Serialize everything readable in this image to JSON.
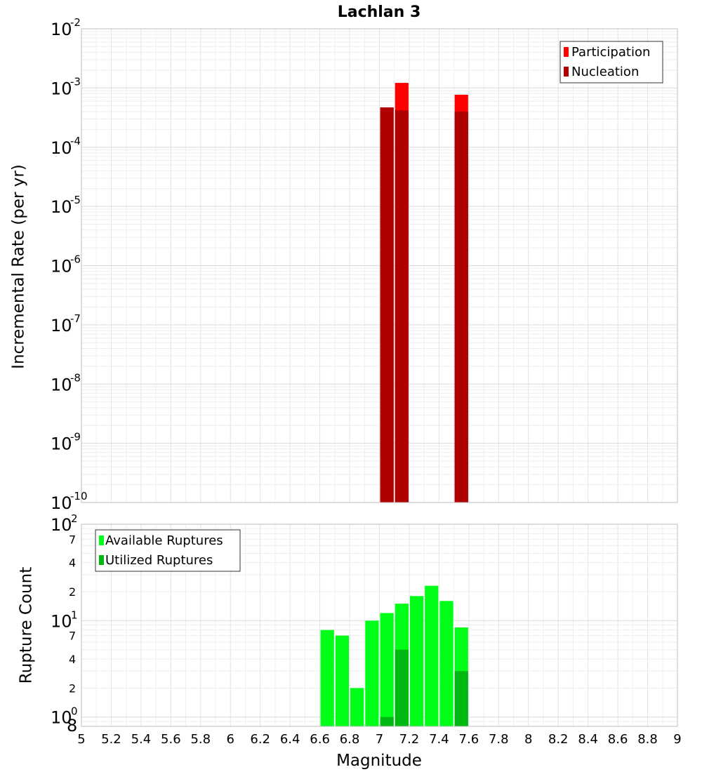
{
  "chart_data": [
    {
      "type": "bar",
      "title": "Lachlan 3",
      "ylabel": "Incremental Rate (per yr)",
      "xlim": [
        5,
        9
      ],
      "ylim_exponent": [
        -10,
        -2
      ],
      "y_scale": "log",
      "grid": true,
      "legend_position": "top-right",
      "y_tick_base": "10",
      "y_tick_exponents": [
        "-2",
        "-3",
        "-4",
        "-5",
        "-6",
        "-7",
        "-8",
        "-9",
        "-10"
      ],
      "bin_width": 0.1,
      "series": [
        {
          "name": "Participation",
          "color": "#ff0000",
          "x": [
            7.05,
            7.15,
            7.55
          ],
          "values": [
            0.00047,
            0.00122,
            0.00077
          ]
        },
        {
          "name": "Nucleation",
          "color": "#b00000",
          "x": [
            7.05,
            7.15,
            7.55
          ],
          "values": [
            0.00047,
            0.00042,
            0.0004
          ]
        }
      ]
    },
    {
      "type": "bar",
      "title": "",
      "ylabel": "Rupture Count",
      "xlabel": "Magnitude",
      "xlim": [
        5,
        9
      ],
      "ylim": [
        0.8,
        100
      ],
      "y_scale": "log",
      "grid": true,
      "legend_position": "top-left",
      "bin_width": 0.1,
      "x_ticks": [
        "5",
        "5.2",
        "5.4",
        "5.6",
        "5.8",
        "6",
        "6.2",
        "6.4",
        "6.6",
        "6.8",
        "7",
        "7.2",
        "7.4",
        "7.6",
        "7.8",
        "8",
        "8.2",
        "8.4",
        "8.6",
        "8.8",
        "9"
      ],
      "y_major_ticks": [
        {
          "base": "10",
          "exp": "2"
        },
        {
          "base": "10",
          "exp": "1"
        },
        {
          "base": "10",
          "exp": "0"
        }
      ],
      "y_minor_ticks": [
        "7",
        "4",
        "2",
        "7",
        "4",
        "2",
        "8"
      ],
      "series": [
        {
          "name": "Available Ruptures",
          "color": "#00ff18",
          "x": [
            6.65,
            6.75,
            6.85,
            6.95,
            7.05,
            7.15,
            7.25,
            7.35,
            7.45,
            7.55
          ],
          "values": [
            8,
            7,
            2,
            10,
            12,
            15,
            18,
            23,
            16,
            8.5
          ]
        },
        {
          "name": "Utilized Ruptures",
          "color": "#00b812",
          "x": [
            7.05,
            7.15,
            7.55
          ],
          "values": [
            1,
            5,
            3
          ]
        }
      ]
    }
  ]
}
